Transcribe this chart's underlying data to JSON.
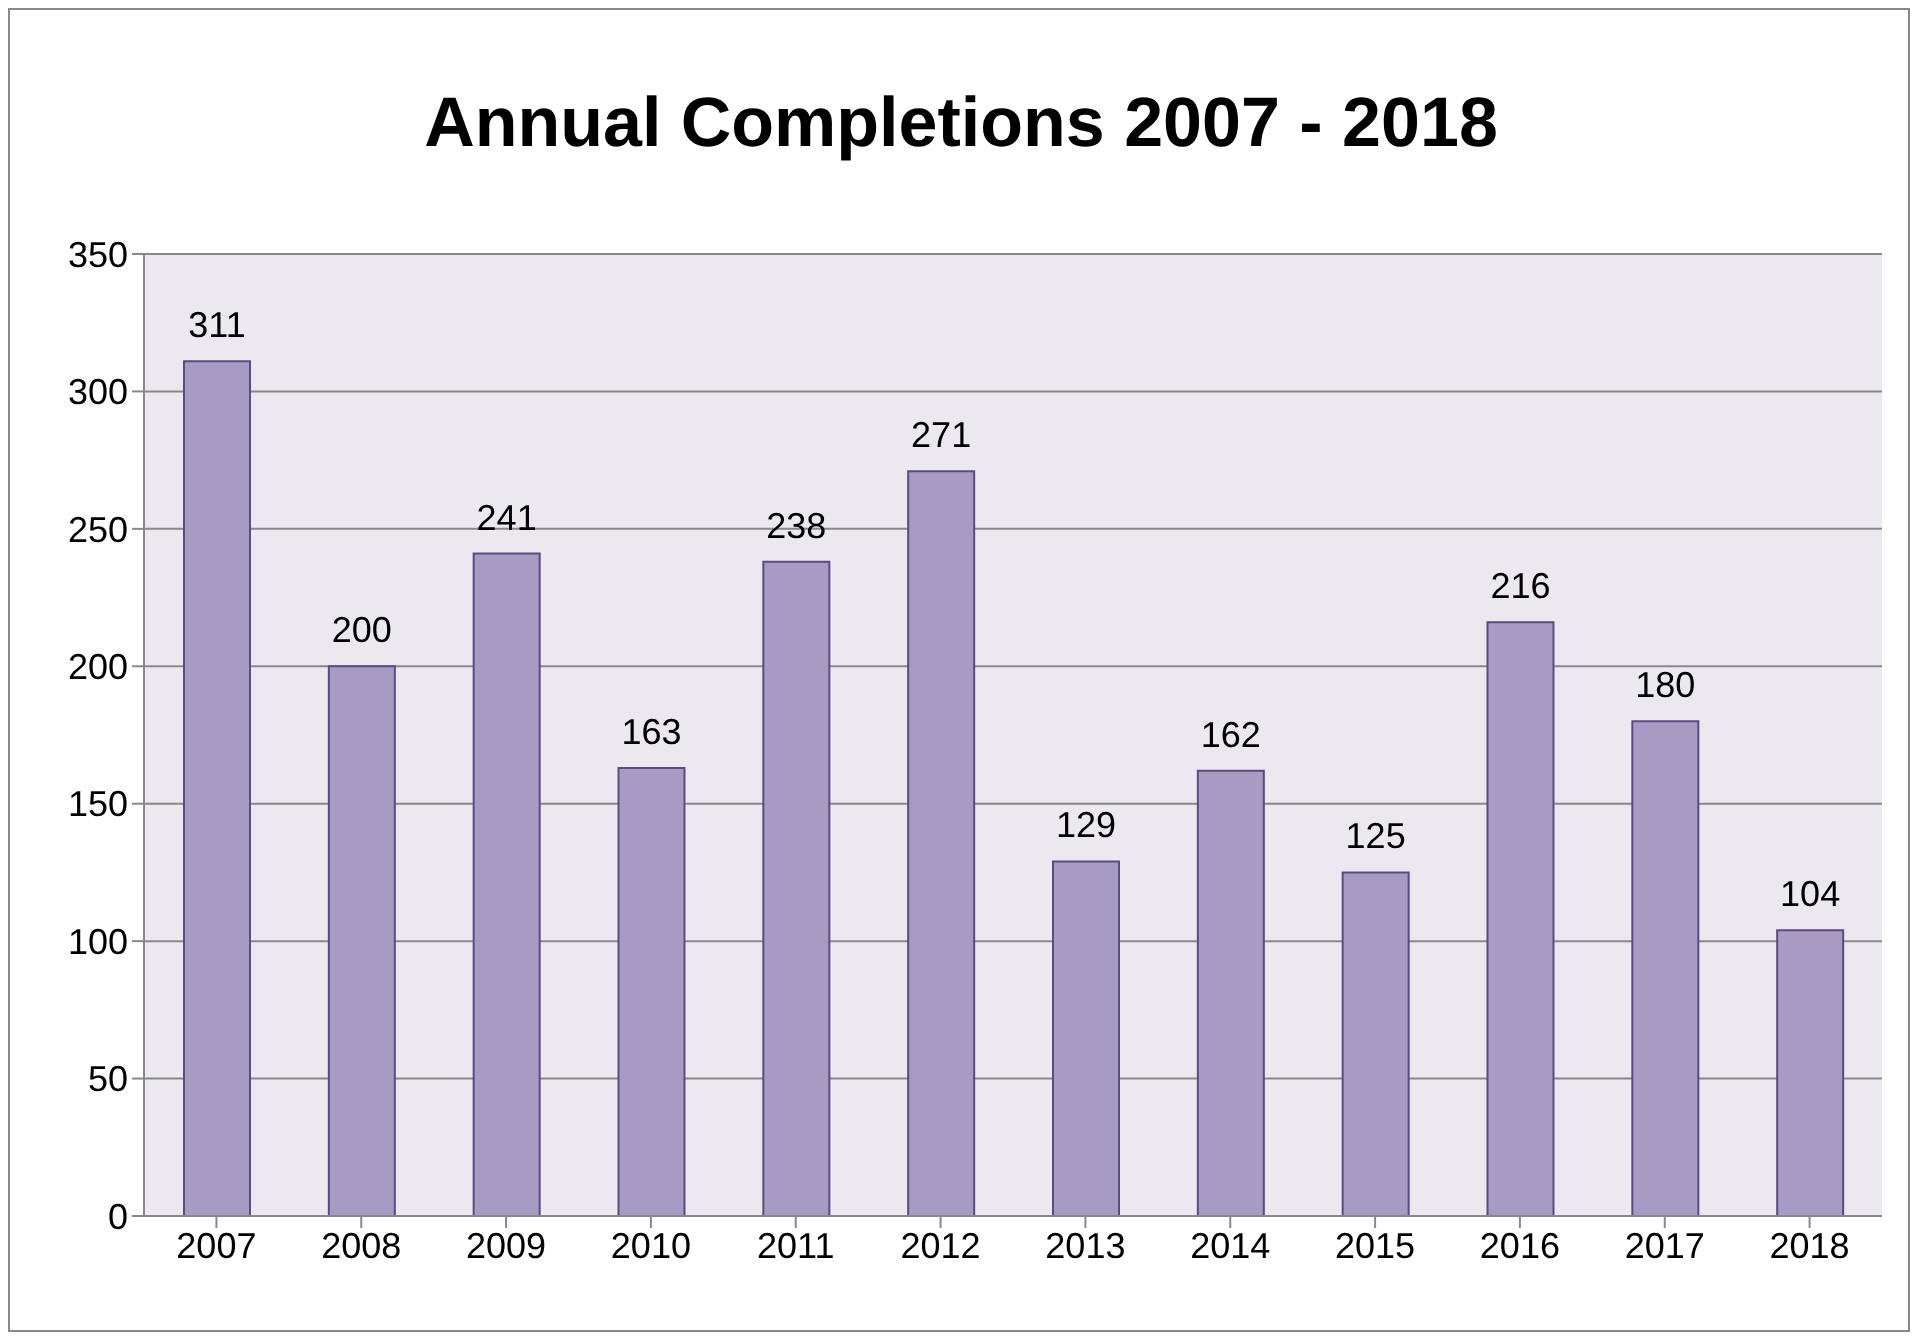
{
  "chart_data": {
    "type": "bar",
    "title": "Annual Completions 2007 - 2018",
    "categories": [
      "2007",
      "2008",
      "2009",
      "2010",
      "2011",
      "2012",
      "2013",
      "2014",
      "2015",
      "2016",
      "2017",
      "2018"
    ],
    "values": [
      311,
      200,
      241,
      163,
      238,
      271,
      129,
      162,
      125,
      216,
      180,
      104
    ],
    "color": "#a69bc2",
    "ylim": [
      0,
      350
    ],
    "yticks": [
      0,
      50,
      100,
      150,
      200,
      250,
      300,
      350
    ],
    "grid": "y",
    "data_labels": true
  }
}
